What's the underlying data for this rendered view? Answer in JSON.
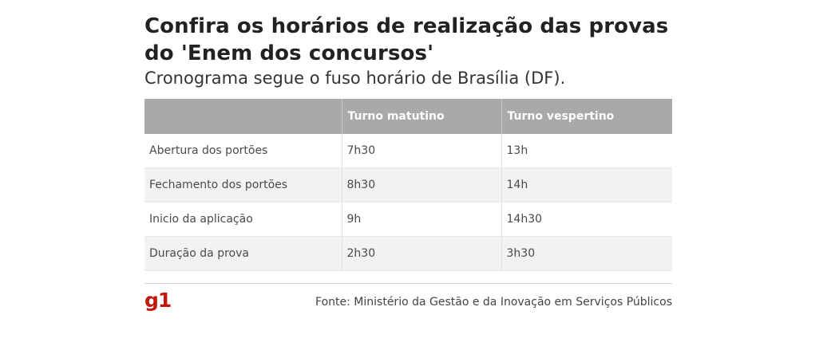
{
  "title": "Confira os horários de realização das provas do 'Enem dos concursos'",
  "subtitle": "Cronograma segue o fuso horário de Brasília (DF).",
  "table": {
    "headers": [
      "",
      "Turno matutino",
      "Turno vespertino"
    ],
    "rows": [
      [
        "Abertura dos portões",
        "7h30",
        "13h"
      ],
      [
        "Fechamento dos portões",
        "8h30",
        "14h"
      ],
      [
        "Inicio da aplicação",
        "9h",
        "14h30"
      ],
      [
        "Duração da prova",
        "2h30",
        "3h30"
      ]
    ]
  },
  "footer": {
    "logo": "g1",
    "source": "Fonte: Ministério da Gestão e da Inovação em Serviços Públicos"
  },
  "colors": {
    "header_bg": "#a9a9a9",
    "logo": "#c4170c"
  }
}
